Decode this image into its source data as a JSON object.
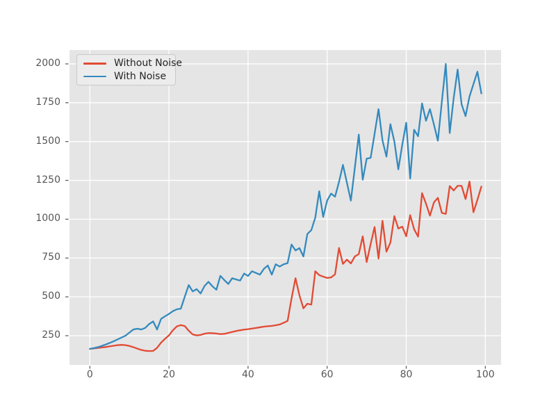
{
  "figure": {
    "background": "#FFFFFF",
    "plot_background": "#E5E5E5",
    "grid_color": "#FFFFFF",
    "tick_color": "#555555",
    "tick_label_color": "#555555"
  },
  "legend": {
    "position": "upper-left",
    "items": [
      {
        "label": "Without Noise",
        "color": "#E24A33"
      },
      {
        "label": "With Noise",
        "color": "#348ABD"
      }
    ]
  },
  "chart_data": {
    "type": "line",
    "title": "",
    "xlabel": "",
    "ylabel": "",
    "grid": true,
    "legend_position": "upper-left",
    "x_description": "integer index 0..99, one point per step",
    "x_start": 0,
    "x_step": 1,
    "xticks": [
      0,
      20,
      40,
      60,
      80,
      100
    ],
    "yticks": [
      250,
      500,
      750,
      1000,
      1250,
      1500,
      1750,
      2000
    ],
    "xlim": [
      -5.1,
      104.0
    ],
    "ylim": [
      60,
      2088
    ],
    "series": [
      {
        "name": "Without Noise",
        "color": "#E24A33",
        "values": [
          165,
          168,
          171,
          174,
          177,
          181,
          185,
          189,
          191,
          189,
          184,
          176,
          167,
          158,
          153,
          151,
          152,
          172,
          205,
          230,
          252,
          285,
          310,
          318,
          312,
          282,
          258,
          252,
          255,
          263,
          267,
          266,
          264,
          260,
          262,
          268,
          274,
          280,
          285,
          289,
          292,
          296,
          300,
          304,
          308,
          311,
          313,
          317,
          322,
          333,
          345,
          490,
          620,
          510,
          426,
          456,
          450,
          665,
          640,
          630,
          622,
          625,
          645,
          815,
          712,
          740,
          715,
          760,
          775,
          890,
          724,
          840,
          950,
          746,
          990,
          791,
          850,
          1020,
          940,
          952,
          890,
          1026,
          935,
          888,
          1168,
          1100,
          1023,
          1108,
          1138,
          1041,
          1034,
          1213,
          1185,
          1215,
          1215,
          1130,
          1243,
          1045,
          1125,
          1210
        ]
      },
      {
        "name": "With Noise",
        "color": "#348ABD",
        "values": [
          165,
          170,
          176,
          184,
          193,
          203,
          214,
          226,
          238,
          250,
          270,
          290,
          295,
          290,
          300,
          325,
          342,
          290,
          358,
          375,
          390,
          408,
          420,
          424,
          501,
          576,
          535,
          550,
          522,
          570,
          597,
          568,
          546,
          635,
          608,
          583,
          620,
          612,
          605,
          650,
          635,
          665,
          654,
          643,
          680,
          702,
          643,
          710,
          695,
          710,
          717,
          837,
          799,
          814,
          760,
          905,
          930,
          1010,
          1180,
          1015,
          1120,
          1165,
          1145,
          1240,
          1350,
          1235,
          1120,
          1330,
          1545,
          1254,
          1390,
          1395,
          1550,
          1709,
          1507,
          1403,
          1612,
          1500,
          1321,
          1480,
          1621,
          1262,
          1576,
          1534,
          1746,
          1634,
          1709,
          1610,
          1505,
          1755,
          2000,
          1555,
          1780,
          1964,
          1740,
          1664,
          1790,
          1870,
          1950,
          1810
        ]
      }
    ]
  }
}
